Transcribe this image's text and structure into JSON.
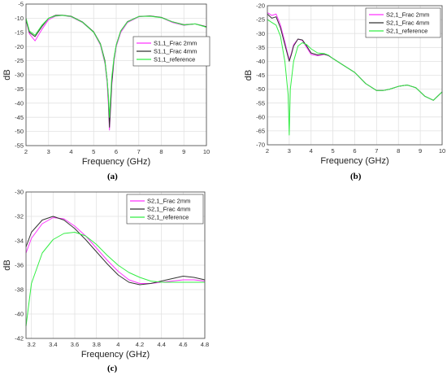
{
  "colors": {
    "frac2mm": "#ff33ff",
    "frac4mm": "#333333",
    "reference": "#33ee44"
  },
  "chart_data": [
    {
      "type": "line",
      "label": "(a)",
      "xlabel": "Frequency (GHz)",
      "ylabel": "dB",
      "xlim": [
        2,
        10
      ],
      "ylim": [
        -55,
        -5
      ],
      "xticks": [
        "2",
        "3",
        "4",
        "5",
        "6",
        "7",
        "8",
        "9",
        "10"
      ],
      "yticks": [
        "-5",
        "-10",
        "-15",
        "-20",
        "-25",
        "-30",
        "-35",
        "-40",
        "-45",
        "-50",
        "-55"
      ],
      "xtick_values": [
        2,
        3,
        4,
        5,
        6,
        7,
        8,
        9,
        10
      ],
      "ytick_values": [
        -5,
        -10,
        -15,
        -20,
        -25,
        -30,
        -35,
        -40,
        -45,
        -50,
        -55
      ],
      "legend_position": "right",
      "grid": true,
      "series": [
        {
          "name": "S1,1_Frac 2mm",
          "color_key": "frac2mm",
          "x": [
            2,
            2.15,
            2.4,
            2.7,
            3.0,
            3.3,
            3.6,
            4.0,
            4.5,
            5.0,
            5.3,
            5.5,
            5.6,
            5.65,
            5.7,
            5.75,
            5.8,
            5.9,
            6.0,
            6.2,
            6.5,
            7.0,
            7.5,
            8.0,
            8.5,
            9.0,
            9.5,
            10
          ],
          "y": [
            -10.5,
            -15.5,
            -18,
            -14,
            -10.5,
            -9.3,
            -9,
            -9.5,
            -11.5,
            -15,
            -19.5,
            -26,
            -33,
            -40,
            -49.5,
            -42,
            -34,
            -25,
            -20,
            -15,
            -11.5,
            -9.5,
            -9.2,
            -9.8,
            -11.5,
            -12.5,
            -12,
            -13
          ]
        },
        {
          "name": "S1,1_Frac 4mm",
          "color_key": "frac4mm",
          "x": [
            2,
            2.15,
            2.4,
            2.7,
            3.0,
            3.3,
            3.6,
            4.0,
            4.5,
            5.0,
            5.3,
            5.5,
            5.6,
            5.65,
            5.7,
            5.75,
            5.8,
            5.9,
            6.0,
            6.2,
            6.5,
            7.0,
            7.5,
            8.0,
            8.5,
            9.0,
            9.5,
            10
          ],
          "y": [
            -10.5,
            -15,
            -16.5,
            -13,
            -10,
            -9,
            -8.9,
            -9.3,
            -11.3,
            -14.8,
            -19,
            -25,
            -32,
            -38,
            -48.5,
            -41,
            -33,
            -24.5,
            -19.5,
            -14.5,
            -11.2,
            -9.4,
            -9.2,
            -9.7,
            -11.3,
            -12.3,
            -12,
            -13
          ]
        },
        {
          "name": "S1,1_reference",
          "color_key": "reference",
          "x": [
            2,
            2.15,
            2.4,
            2.7,
            3.0,
            3.3,
            3.6,
            4.0,
            4.5,
            5.0,
            5.3,
            5.5,
            5.6,
            5.65,
            5.7,
            5.75,
            5.8,
            5.9,
            6.0,
            6.2,
            6.5,
            7.0,
            7.5,
            8.0,
            8.5,
            9.0,
            9.5,
            10
          ],
          "y": [
            -10,
            -14.5,
            -16,
            -12.5,
            -10,
            -9.2,
            -9,
            -9.4,
            -11.4,
            -15,
            -19.2,
            -25.5,
            -32,
            -37,
            -45,
            -38,
            -31,
            -24,
            -19.5,
            -14.5,
            -11.3,
            -9.4,
            -9.3,
            -9.8,
            -11.3,
            -12.4,
            -12,
            -13.2
          ]
        }
      ]
    },
    {
      "type": "line",
      "label": "(b)",
      "xlabel": "Frequency (GHz)",
      "ylabel": "dB",
      "xlim": [
        2,
        10
      ],
      "ylim": [
        -70,
        -20
      ],
      "xticks": [
        "2",
        "3",
        "4",
        "5",
        "6",
        "7",
        "8",
        "9",
        "10"
      ],
      "yticks": [
        "-20",
        "-25",
        "-30",
        "-35",
        "-40",
        "-45",
        "-50",
        "-55",
        "-60",
        "-65",
        "-70"
      ],
      "xtick_values": [
        2,
        3,
        4,
        5,
        6,
        7,
        8,
        9,
        10
      ],
      "ytick_values": [
        -20,
        -25,
        -30,
        -35,
        -40,
        -45,
        -50,
        -55,
        -60,
        -65,
        -70
      ],
      "legend_position": "top-right",
      "grid": true,
      "series": [
        {
          "name": "S2,1_Frac 2mm",
          "color_key": "frac2mm",
          "x": [
            2,
            2.2,
            2.4,
            2.6,
            2.8,
            3.0,
            3.1,
            3.2,
            3.4,
            3.6,
            3.8,
            4.0,
            4.3,
            4.6,
            4.8,
            5.0,
            5.5,
            6.0,
            6.5,
            7.0,
            7.3,
            7.6,
            8.0,
            8.4,
            8.8,
            9.2,
            9.6,
            10
          ],
          "y": [
            -22.5,
            -23.5,
            -23,
            -27,
            -33,
            -39.5,
            -37,
            -34,
            -32,
            -32.5,
            -35,
            -37.5,
            -38,
            -37.5,
            -38,
            -39,
            -41.5,
            -44,
            -48,
            -50.5,
            -50.5,
            -50,
            -49,
            -48.5,
            -49.5,
            -52.5,
            -54,
            -51
          ]
        },
        {
          "name": "S2,1_Frac 4mm",
          "color_key": "frac4mm",
          "x": [
            2,
            2.2,
            2.4,
            2.6,
            2.8,
            3.0,
            3.1,
            3.2,
            3.4,
            3.6,
            3.8,
            4.0,
            4.3,
            4.6,
            4.8,
            5.0,
            5.5,
            6.0,
            6.5,
            7.0,
            7.3,
            7.6,
            8.0,
            8.4,
            8.8,
            9.2,
            9.6,
            10
          ],
          "y": [
            -23,
            -24.5,
            -24,
            -28,
            -34,
            -40,
            -37.5,
            -34.5,
            -32,
            -32.3,
            -34.5,
            -37,
            -37.7,
            -37.4,
            -37.9,
            -39,
            -41.5,
            -44,
            -48,
            -50.5,
            -50.5,
            -50,
            -49,
            -48.5,
            -49.5,
            -52.5,
            -54,
            -51
          ]
        },
        {
          "name": "S2,1_reference",
          "color_key": "reference",
          "x": [
            2,
            2.2,
            2.4,
            2.6,
            2.8,
            2.95,
            3.0,
            3.05,
            3.2,
            3.4,
            3.6,
            3.8,
            4.0,
            4.3,
            4.6,
            4.8,
            5.0,
            5.5,
            6.0,
            6.5,
            7.0,
            7.3,
            7.6,
            8.0,
            8.4,
            8.8,
            9.2,
            9.6,
            10
          ],
          "y": [
            -25,
            -26,
            -27,
            -31,
            -40,
            -52,
            -66.5,
            -50,
            -40,
            -34.5,
            -33.3,
            -34,
            -35.5,
            -37,
            -37.2,
            -37.8,
            -39,
            -41.5,
            -44,
            -48,
            -50.5,
            -50.5,
            -50,
            -49,
            -48.5,
            -49.5,
            -52.5,
            -54,
            -51
          ]
        }
      ]
    },
    {
      "type": "line",
      "label": "(c)",
      "xlabel": "Frequency (GHz)",
      "ylabel": "dB",
      "xlim": [
        3.15,
        4.8
      ],
      "ylim": [
        -42,
        -30
      ],
      "xticks": [
        "3.2",
        "3.4",
        "3.6",
        "3.8",
        "4",
        "4.2",
        "4.4",
        "4.6",
        "4.8"
      ],
      "yticks": [
        "-30",
        "-32",
        "-34",
        "-36",
        "-38",
        "-40",
        "-42"
      ],
      "xtick_values": [
        3.2,
        3.4,
        3.6,
        3.8,
        4.0,
        4.2,
        4.4,
        4.6,
        4.8
      ],
      "ytick_values": [
        -30,
        -32,
        -34,
        -36,
        -38,
        -40,
        -42
      ],
      "legend_position": "top-right",
      "grid": true,
      "series": [
        {
          "name": "S2,1_Frac 2mm",
          "color_key": "frac2mm",
          "x": [
            3.15,
            3.2,
            3.3,
            3.4,
            3.5,
            3.6,
            3.7,
            3.8,
            3.9,
            4.0,
            4.1,
            4.2,
            4.3,
            4.4,
            4.5,
            4.6,
            4.7,
            4.8
          ],
          "y": [
            -35,
            -33.8,
            -32.6,
            -32.1,
            -32.2,
            -32.8,
            -33.6,
            -34.6,
            -35.6,
            -36.5,
            -37.2,
            -37.5,
            -37.5,
            -37.4,
            -37.3,
            -37.2,
            -37.2,
            -37.3
          ]
        },
        {
          "name": "S2,1_Frac 4mm",
          "color_key": "frac4mm",
          "x": [
            3.15,
            3.2,
            3.3,
            3.4,
            3.5,
            3.6,
            3.7,
            3.8,
            3.9,
            4.0,
            4.1,
            4.2,
            4.3,
            4.4,
            4.5,
            4.6,
            4.7,
            4.8
          ],
          "y": [
            -34.5,
            -33.3,
            -32.3,
            -32,
            -32.3,
            -33,
            -33.9,
            -34.9,
            -35.9,
            -36.8,
            -37.4,
            -37.6,
            -37.5,
            -37.3,
            -37.1,
            -36.9,
            -37.0,
            -37.2
          ]
        },
        {
          "name": "S2,1_reference",
          "color_key": "reference",
          "x": [
            3.15,
            3.2,
            3.3,
            3.4,
            3.5,
            3.6,
            3.7,
            3.8,
            3.9,
            4.0,
            4.1,
            4.2,
            4.3,
            4.4,
            4.5,
            4.6,
            4.7,
            4.8
          ],
          "y": [
            -41,
            -37.5,
            -35,
            -33.9,
            -33.4,
            -33.3,
            -33.6,
            -34.3,
            -35.2,
            -36.0,
            -36.6,
            -37.0,
            -37.3,
            -37.4,
            -37.4,
            -37.4,
            -37.4,
            -37.4
          ]
        }
      ]
    }
  ]
}
